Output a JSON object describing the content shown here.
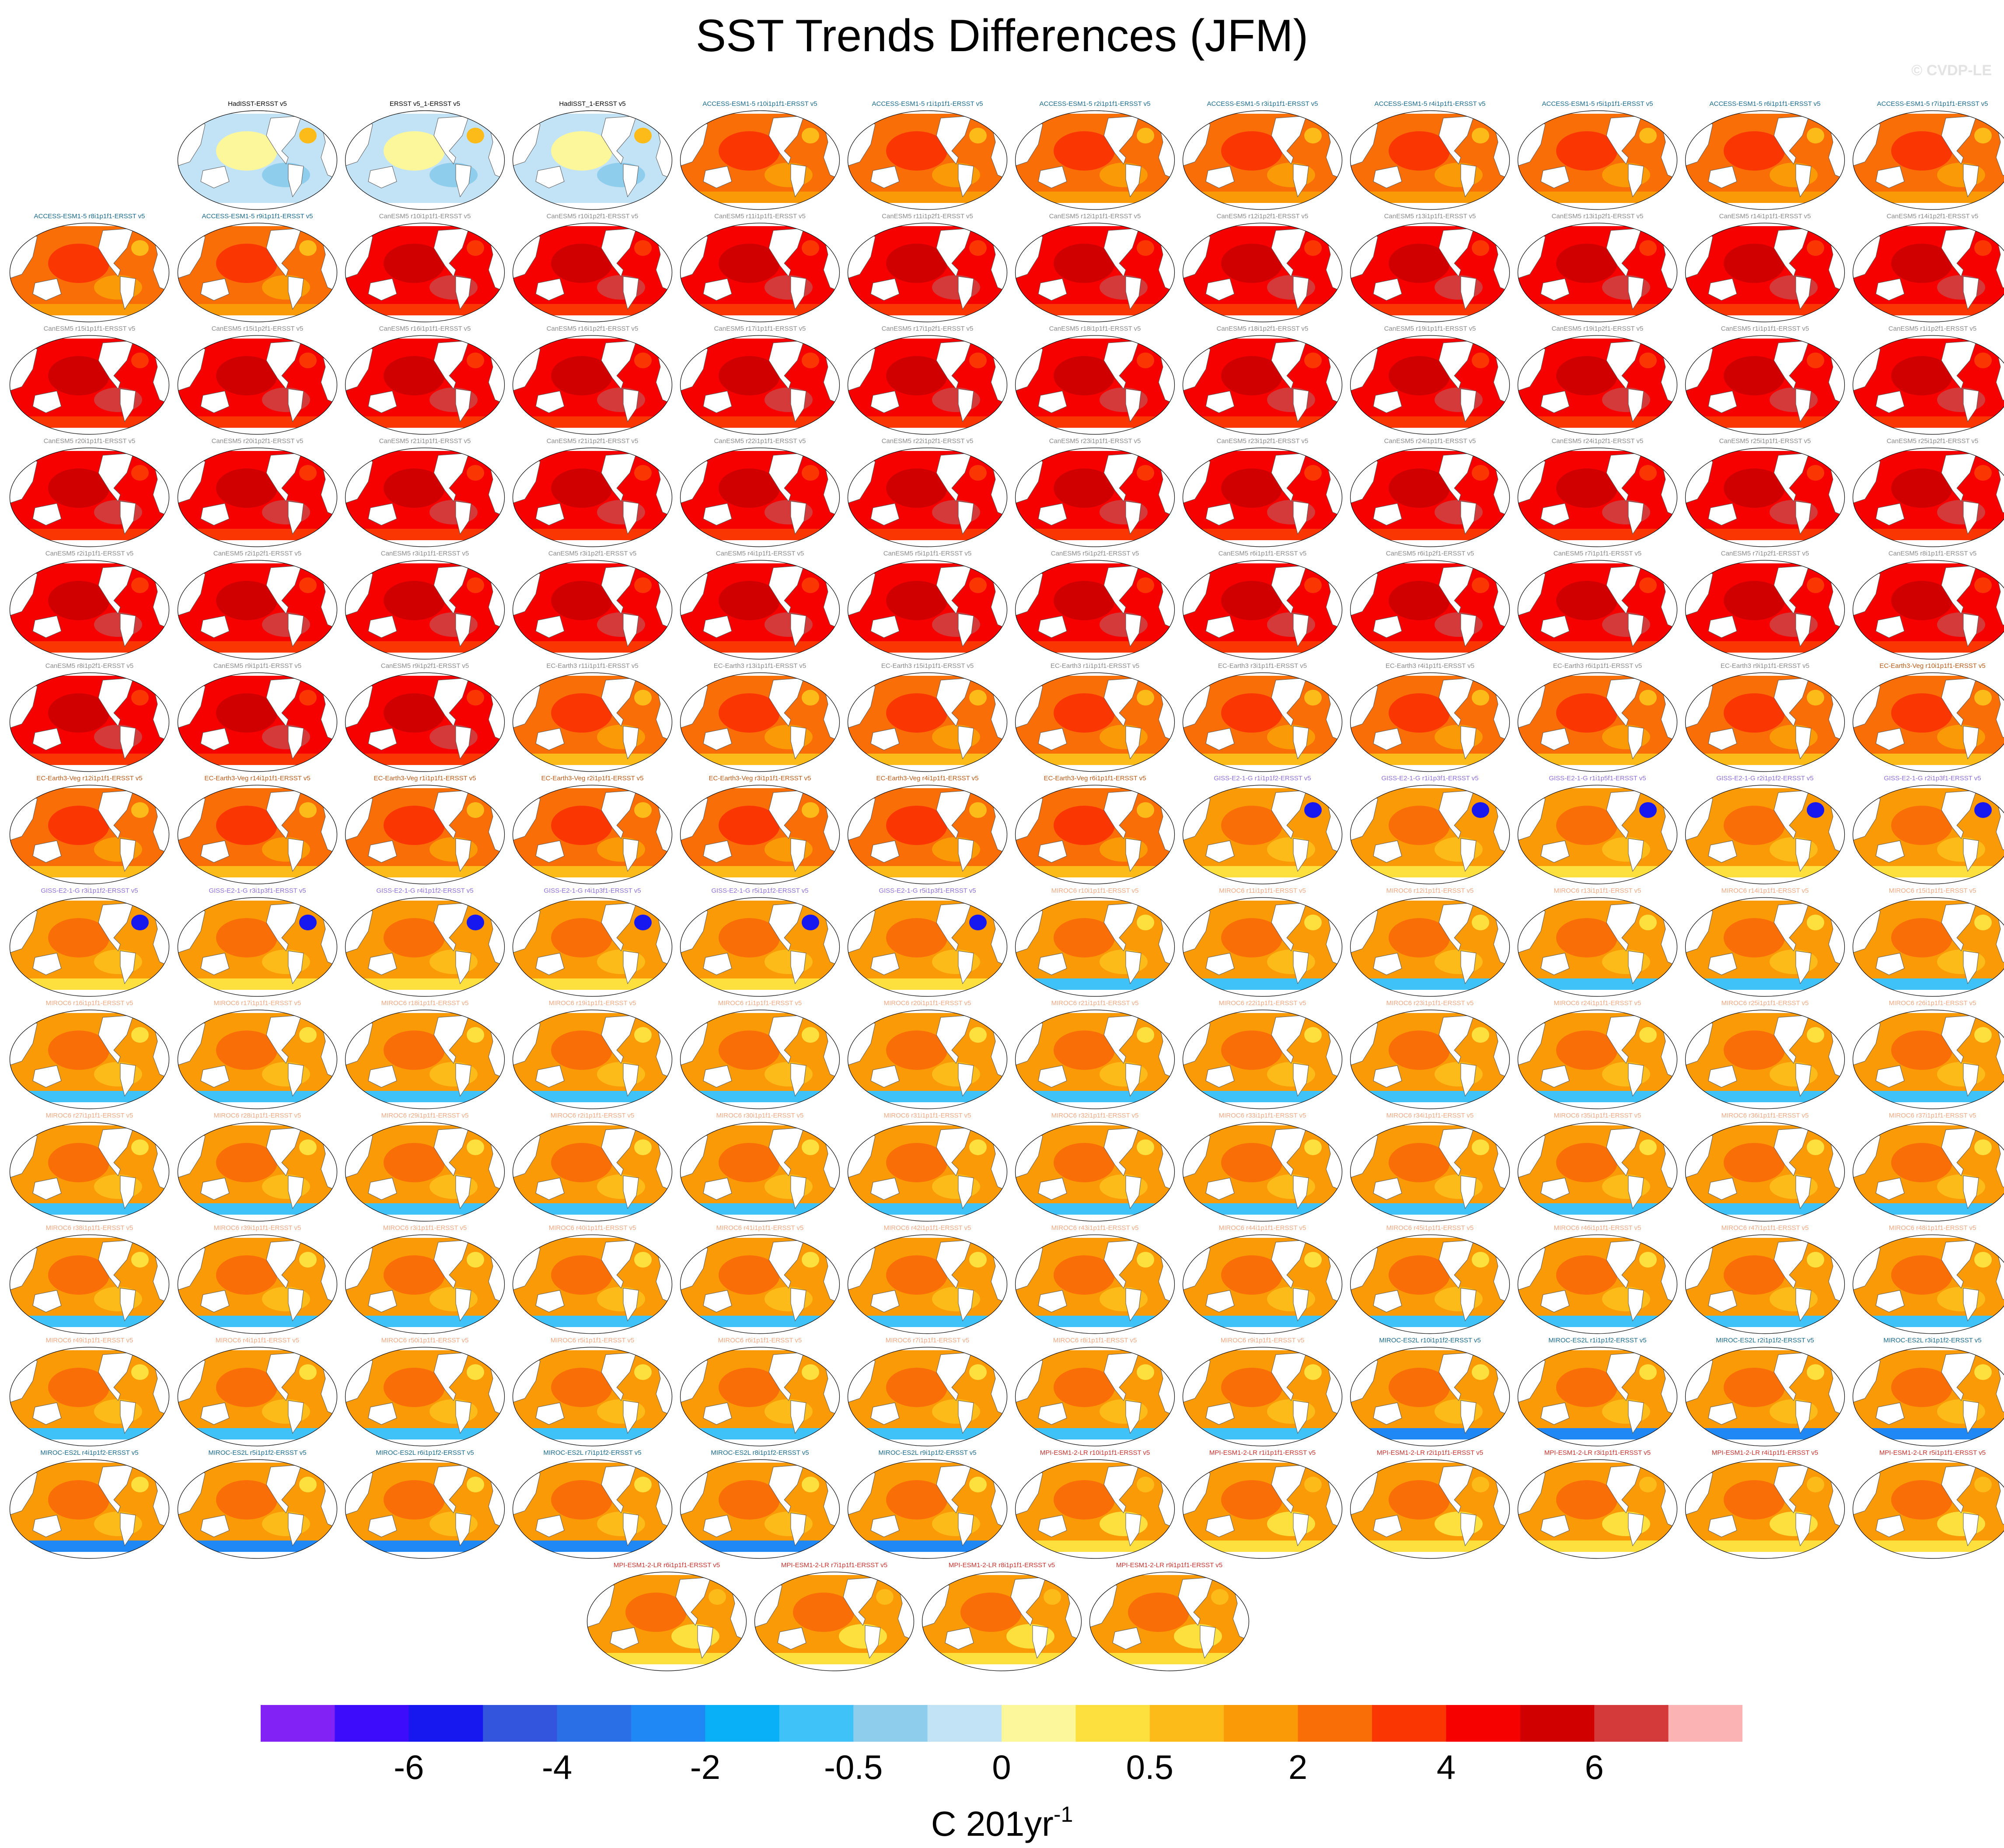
{
  "title": "SST Trends Differences (JFM)",
  "credit": "© CVDP-LE",
  "units": {
    "base": "C 201yr",
    "exponent": "-1"
  },
  "colorbar": {
    "colors": [
      "#8322f5",
      "#3d0cfa",
      "#1717f0",
      "#3355de",
      "#2a6fe6",
      "#1f88f5",
      "#0ab0f7",
      "#3ec2f7",
      "#8ecdec",
      "#c2e3f5",
      "#fdf79b",
      "#fde03d",
      "#fdbb19",
      "#fa9a07",
      "#fa6e07",
      "#fa3703",
      "#f70000",
      "#d10000",
      "#d43a3a",
      "#fcb3b3"
    ],
    "tick_labels": [
      "-6",
      "-4",
      "-2",
      "-0.5",
      "0",
      "0.5",
      "2",
      "4",
      "6"
    ]
  },
  "panels": [
    {
      "label": "HadISST-ERSST v5",
      "color": "#000000",
      "scheme": "obs"
    },
    {
      "label": "ERSST v5_1-ERSST v5",
      "color": "#000000",
      "scheme": "obs"
    },
    {
      "label": "HadISST_1-ERSST v5",
      "color": "#000000",
      "scheme": "obs"
    },
    {
      "label": "ACCESS-ESM1-5 r10i1p1f1-ERSST v5",
      "color": "#1a6a8c",
      "scheme": "access"
    },
    {
      "label": "ACCESS-ESM1-5 r1i1p1f1-ERSST v5",
      "color": "#1a6a8c",
      "scheme": "access"
    },
    {
      "label": "ACCESS-ESM1-5 r2i1p1f1-ERSST v5",
      "color": "#1a6a8c",
      "scheme": "access"
    },
    {
      "label": "ACCESS-ESM1-5 r3i1p1f1-ERSST v5",
      "color": "#1a6a8c",
      "scheme": "access"
    },
    {
      "label": "ACCESS-ESM1-5 r4i1p1f1-ERSST v5",
      "color": "#1a6a8c",
      "scheme": "access"
    },
    {
      "label": "ACCESS-ESM1-5 r5i1p1f1-ERSST v5",
      "color": "#1a6a8c",
      "scheme": "access"
    },
    {
      "label": "ACCESS-ESM1-5 r6i1p1f1-ERSST v5",
      "color": "#1a6a8c",
      "scheme": "access"
    },
    {
      "label": "ACCESS-ESM1-5 r7i1p1f1-ERSST v5",
      "color": "#1a6a8c",
      "scheme": "access"
    },
    {
      "label": "ACCESS-ESM1-5 r8i1p1f1-ERSST v5",
      "color": "#1a6a8c",
      "scheme": "access"
    },
    {
      "label": "ACCESS-ESM1-5 r9i1p1f1-ERSST v5",
      "color": "#1a6a8c",
      "scheme": "access"
    },
    {
      "label": "CanESM5 r10i1p1f1-ERSST v5",
      "color": "#8a8a8a",
      "scheme": "canesm"
    },
    {
      "label": "CanESM5 r10i1p2f1-ERSST v5",
      "color": "#8a8a8a",
      "scheme": "canesm"
    },
    {
      "label": "CanESM5 r11i1p1f1-ERSST v5",
      "color": "#8a8a8a",
      "scheme": "canesm"
    },
    {
      "label": "CanESM5 r11i1p2f1-ERSST v5",
      "color": "#8a8a8a",
      "scheme": "canesm"
    },
    {
      "label": "CanESM5 r12i1p1f1-ERSST v5",
      "color": "#8a8a8a",
      "scheme": "canesm"
    },
    {
      "label": "CanESM5 r12i1p2f1-ERSST v5",
      "color": "#8a8a8a",
      "scheme": "canesm"
    },
    {
      "label": "CanESM5 r13i1p1f1-ERSST v5",
      "color": "#8a8a8a",
      "scheme": "canesm"
    },
    {
      "label": "CanESM5 r13i1p2f1-ERSST v5",
      "color": "#8a8a8a",
      "scheme": "canesm"
    },
    {
      "label": "CanESM5 r14i1p1f1-ERSST v5",
      "color": "#8a8a8a",
      "scheme": "canesm"
    },
    {
      "label": "CanESM5 r14i1p2f1-ERSST v5",
      "color": "#8a8a8a",
      "scheme": "canesm"
    },
    {
      "label": "CanESM5 r15i1p1f1-ERSST v5",
      "color": "#8a8a8a",
      "scheme": "canesm"
    },
    {
      "label": "CanESM5 r15i1p2f1-ERSST v5",
      "color": "#8a8a8a",
      "scheme": "canesm"
    },
    {
      "label": "CanESM5 r16i1p1f1-ERSST v5",
      "color": "#8a8a8a",
      "scheme": "canesm"
    },
    {
      "label": "CanESM5 r16i1p2f1-ERSST v5",
      "color": "#8a8a8a",
      "scheme": "canesm"
    },
    {
      "label": "CanESM5 r17i1p1f1-ERSST v5",
      "color": "#8a8a8a",
      "scheme": "canesm"
    },
    {
      "label": "CanESM5 r17i1p2f1-ERSST v5",
      "color": "#8a8a8a",
      "scheme": "canesm"
    },
    {
      "label": "CanESM5 r18i1p1f1-ERSST v5",
      "color": "#8a8a8a",
      "scheme": "canesm"
    },
    {
      "label": "CanESM5 r18i1p2f1-ERSST v5",
      "color": "#8a8a8a",
      "scheme": "canesm"
    },
    {
      "label": "CanESM5 r19i1p1f1-ERSST v5",
      "color": "#8a8a8a",
      "scheme": "canesm"
    },
    {
      "label": "CanESM5 r19i1p2f1-ERSST v5",
      "color": "#8a8a8a",
      "scheme": "canesm"
    },
    {
      "label": "CanESM5 r1i1p1f1-ERSST v5",
      "color": "#8a8a8a",
      "scheme": "canesm"
    },
    {
      "label": "CanESM5 r1i1p2f1-ERSST v5",
      "color": "#8a8a8a",
      "scheme": "canesm"
    },
    {
      "label": "CanESM5 r20i1p1f1-ERSST v5",
      "color": "#8a8a8a",
      "scheme": "canesm"
    },
    {
      "label": "CanESM5 r20i1p2f1-ERSST v5",
      "color": "#8a8a8a",
      "scheme": "canesm"
    },
    {
      "label": "CanESM5 r21i1p1f1-ERSST v5",
      "color": "#8a8a8a",
      "scheme": "canesm"
    },
    {
      "label": "CanESM5 r21i1p2f1-ERSST v5",
      "color": "#8a8a8a",
      "scheme": "canesm"
    },
    {
      "label": "CanESM5 r22i1p1f1-ERSST v5",
      "color": "#8a8a8a",
      "scheme": "canesm"
    },
    {
      "label": "CanESM5 r22i1p2f1-ERSST v5",
      "color": "#8a8a8a",
      "scheme": "canesm"
    },
    {
      "label": "CanESM5 r23i1p1f1-ERSST v5",
      "color": "#8a8a8a",
      "scheme": "canesm"
    },
    {
      "label": "CanESM5 r23i1p2f1-ERSST v5",
      "color": "#8a8a8a",
      "scheme": "canesm"
    },
    {
      "label": "CanESM5 r24i1p1f1-ERSST v5",
      "color": "#8a8a8a",
      "scheme": "canesm"
    },
    {
      "label": "CanESM5 r24i1p2f1-ERSST v5",
      "color": "#8a8a8a",
      "scheme": "canesm"
    },
    {
      "label": "CanESM5 r25i1p1f1-ERSST v5",
      "color": "#8a8a8a",
      "scheme": "canesm"
    },
    {
      "label": "CanESM5 r25i1p2f1-ERSST v5",
      "color": "#8a8a8a",
      "scheme": "canesm"
    },
    {
      "label": "CanESM5 r2i1p1f1-ERSST v5",
      "color": "#8a8a8a",
      "scheme": "canesm"
    },
    {
      "label": "CanESM5 r2i1p2f1-ERSST v5",
      "color": "#8a8a8a",
      "scheme": "canesm"
    },
    {
      "label": "CanESM5 r3i1p1f1-ERSST v5",
      "color": "#8a8a8a",
      "scheme": "canesm"
    },
    {
      "label": "CanESM5 r3i1p2f1-ERSST v5",
      "color": "#8a8a8a",
      "scheme": "canesm"
    },
    {
      "label": "CanESM5 r4i1p1f1-ERSST v5",
      "color": "#8a8a8a",
      "scheme": "canesm"
    },
    {
      "label": "CanESM5 r5i1p1f1-ERSST v5",
      "color": "#8a8a8a",
      "scheme": "canesm"
    },
    {
      "label": "CanESM5 r5i1p2f1-ERSST v5",
      "color": "#8a8a8a",
      "scheme": "canesm"
    },
    {
      "label": "CanESM5 r6i1p1f1-ERSST v5",
      "color": "#8a8a8a",
      "scheme": "canesm"
    },
    {
      "label": "CanESM5 r6i1p2f1-ERSST v5",
      "color": "#8a8a8a",
      "scheme": "canesm"
    },
    {
      "label": "CanESM5 r7i1p1f1-ERSST v5",
      "color": "#8a8a8a",
      "scheme": "canesm"
    },
    {
      "label": "CanESM5 r7i1p2f1-ERSST v5",
      "color": "#8a8a8a",
      "scheme": "canesm"
    },
    {
      "label": "CanESM5 r8i1p1f1-ERSST v5",
      "color": "#8a8a8a",
      "scheme": "canesm"
    },
    {
      "label": "CanESM5 r8i1p2f1-ERSST v5",
      "color": "#8a8a8a",
      "scheme": "canesm"
    },
    {
      "label": "CanESM5 r9i1p1f1-ERSST v5",
      "color": "#8a8a8a",
      "scheme": "canesm"
    },
    {
      "label": "CanESM5 r9i1p2f1-ERSST v5",
      "color": "#8a8a8a",
      "scheme": "canesm"
    },
    {
      "label": "EC-Earth3 r11i1p1f1-ERSST v5",
      "color": "#8a8a8a",
      "scheme": "ecearth"
    },
    {
      "label": "EC-Earth3 r13i1p1f1-ERSST v5",
      "color": "#8a8a8a",
      "scheme": "ecearth"
    },
    {
      "label": "EC-Earth3 r15i1p1f1-ERSST v5",
      "color": "#8a8a8a",
      "scheme": "ecearth"
    },
    {
      "label": "EC-Earth3 r1i1p1f1-ERSST v5",
      "color": "#8a8a8a",
      "scheme": "ecearth"
    },
    {
      "label": "EC-Earth3 r3i1p1f1-ERSST v5",
      "color": "#8a8a8a",
      "scheme": "ecearth"
    },
    {
      "label": "EC-Earth3 r4i1p1f1-ERSST v5",
      "color": "#8a8a8a",
      "scheme": "ecearth"
    },
    {
      "label": "EC-Earth3 r6i1p1f1-ERSST v5",
      "color": "#8a8a8a",
      "scheme": "ecearth"
    },
    {
      "label": "EC-Earth3 r9i1p1f1-ERSST v5",
      "color": "#8a8a8a",
      "scheme": "ecearth"
    },
    {
      "label": "EC-Earth3-Veg r10i1p1f1-ERSST v5",
      "color": "#b85a18",
      "scheme": "ecveg"
    },
    {
      "label": "EC-Earth3-Veg r12i1p1f1-ERSST v5",
      "color": "#b85a18",
      "scheme": "ecveg"
    },
    {
      "label": "EC-Earth3-Veg r14i1p1f1-ERSST v5",
      "color": "#b85a18",
      "scheme": "ecveg"
    },
    {
      "label": "EC-Earth3-Veg r1i1p1f1-ERSST v5",
      "color": "#b85a18",
      "scheme": "ecveg"
    },
    {
      "label": "EC-Earth3-Veg r2i1p1f1-ERSST v5",
      "color": "#b85a18",
      "scheme": "ecveg"
    },
    {
      "label": "EC-Earth3-Veg r3i1p1f1-ERSST v5",
      "color": "#b85a18",
      "scheme": "ecveg"
    },
    {
      "label": "EC-Earth3-Veg r4i1p1f1-ERSST v5",
      "color": "#b85a18",
      "scheme": "ecveg"
    },
    {
      "label": "EC-Earth3-Veg r6i1p1f1-ERSST v5",
      "color": "#b85a18",
      "scheme": "ecveg"
    },
    {
      "label": "GISS-E2-1-G r1i1p1f2-ERSST v5",
      "color": "#8e6fd8",
      "scheme": "giss"
    },
    {
      "label": "GISS-E2-1-G r1i1p3f1-ERSST v5",
      "color": "#8e6fd8",
      "scheme": "giss"
    },
    {
      "label": "GISS-E2-1-G r1i1p5f1-ERSST v5",
      "color": "#8e6fd8",
      "scheme": "giss"
    },
    {
      "label": "GISS-E2-1-G r2i1p1f2-ERSST v5",
      "color": "#8e6fd8",
      "scheme": "giss"
    },
    {
      "label": "GISS-E2-1-G r2i1p3f1-ERSST v5",
      "color": "#8e6fd8",
      "scheme": "giss"
    },
    {
      "label": "GISS-E2-1-G r3i1p1f2-ERSST v5",
      "color": "#8e6fd8",
      "scheme": "giss"
    },
    {
      "label": "GISS-E2-1-G r3i1p3f1-ERSST v5",
      "color": "#8e6fd8",
      "scheme": "giss"
    },
    {
      "label": "GISS-E2-1-G r4i1p1f2-ERSST v5",
      "color": "#8e6fd8",
      "scheme": "giss"
    },
    {
      "label": "GISS-E2-1-G r4i1p3f1-ERSST v5",
      "color": "#8e6fd8",
      "scheme": "giss"
    },
    {
      "label": "GISS-E2-1-G r5i1p1f2-ERSST v5",
      "color": "#8e6fd8",
      "scheme": "giss"
    },
    {
      "label": "GISS-E2-1-G r5i1p3f1-ERSST v5",
      "color": "#8e6fd8",
      "scheme": "giss"
    },
    {
      "label": "MIROC6 r10i1p1f1-ERSST v5",
      "color": "#f0a882",
      "scheme": "miroc6"
    },
    {
      "label": "MIROC6 r11i1p1f1-ERSST v5",
      "color": "#f0a882",
      "scheme": "miroc6"
    },
    {
      "label": "MIROC6 r12i1p1f1-ERSST v5",
      "color": "#f0a882",
      "scheme": "miroc6"
    },
    {
      "label": "MIROC6 r13i1p1f1-ERSST v5",
      "color": "#f0a882",
      "scheme": "miroc6"
    },
    {
      "label": "MIROC6 r14i1p1f1-ERSST v5",
      "color": "#f0a882",
      "scheme": "miroc6"
    },
    {
      "label": "MIROC6 r15i1p1f1-ERSST v5",
      "color": "#f0a882",
      "scheme": "miroc6"
    },
    {
      "label": "MIROC6 r16i1p1f1-ERSST v5",
      "color": "#f0a882",
      "scheme": "miroc6"
    },
    {
      "label": "MIROC6 r17i1p1f1-ERSST v5",
      "color": "#f0a882",
      "scheme": "miroc6"
    },
    {
      "label": "MIROC6 r18i1p1f1-ERSST v5",
      "color": "#f0a882",
      "scheme": "miroc6"
    },
    {
      "label": "MIROC6 r19i1p1f1-ERSST v5",
      "color": "#f0a882",
      "scheme": "miroc6"
    },
    {
      "label": "MIROC6 r1i1p1f1-ERSST v5",
      "color": "#f0a882",
      "scheme": "miroc6"
    },
    {
      "label": "MIROC6 r20i1p1f1-ERSST v5",
      "color": "#f0a882",
      "scheme": "miroc6"
    },
    {
      "label": "MIROC6 r21i1p1f1-ERSST v5",
      "color": "#f0a882",
      "scheme": "miroc6"
    },
    {
      "label": "MIROC6 r22i1p1f1-ERSST v5",
      "color": "#f0a882",
      "scheme": "miroc6"
    },
    {
      "label": "MIROC6 r23i1p1f1-ERSST v5",
      "color": "#f0a882",
      "scheme": "miroc6"
    },
    {
      "label": "MIROC6 r24i1p1f1-ERSST v5",
      "color": "#f0a882",
      "scheme": "miroc6"
    },
    {
      "label": "MIROC6 r25i1p1f1-ERSST v5",
      "color": "#f0a882",
      "scheme": "miroc6"
    },
    {
      "label": "MIROC6 r26i1p1f1-ERSST v5",
      "color": "#f0a882",
      "scheme": "miroc6"
    },
    {
      "label": "MIROC6 r27i1p1f1-ERSST v5",
      "color": "#f0a882",
      "scheme": "miroc6"
    },
    {
      "label": "MIROC6 r28i1p1f1-ERSST v5",
      "color": "#f0a882",
      "scheme": "miroc6"
    },
    {
      "label": "MIROC6 r29i1p1f1-ERSST v5",
      "color": "#f0a882",
      "scheme": "miroc6"
    },
    {
      "label": "MIROC6 r2i1p1f1-ERSST v5",
      "color": "#f0a882",
      "scheme": "miroc6"
    },
    {
      "label": "MIROC6 r30i1p1f1-ERSST v5",
      "color": "#f0a882",
      "scheme": "miroc6"
    },
    {
      "label": "MIROC6 r31i1p1f1-ERSST v5",
      "color": "#f0a882",
      "scheme": "miroc6"
    },
    {
      "label": "MIROC6 r32i1p1f1-ERSST v5",
      "color": "#f0a882",
      "scheme": "miroc6"
    },
    {
      "label": "MIROC6 r33i1p1f1-ERSST v5",
      "color": "#f0a882",
      "scheme": "miroc6"
    },
    {
      "label": "MIROC6 r34i1p1f1-ERSST v5",
      "color": "#f0a882",
      "scheme": "miroc6"
    },
    {
      "label": "MIROC6 r35i1p1f1-ERSST v5",
      "color": "#f0a882",
      "scheme": "miroc6"
    },
    {
      "label": "MIROC6 r36i1p1f1-ERSST v5",
      "color": "#f0a882",
      "scheme": "miroc6"
    },
    {
      "label": "MIROC6 r37i1p1f1-ERSST v5",
      "color": "#f0a882",
      "scheme": "miroc6"
    },
    {
      "label": "MIROC6 r38i1p1f1-ERSST v5",
      "color": "#f0a882",
      "scheme": "miroc6"
    },
    {
      "label": "MIROC6 r39i1p1f1-ERSST v5",
      "color": "#f0a882",
      "scheme": "miroc6"
    },
    {
      "label": "MIROC6 r3i1p1f1-ERSST v5",
      "color": "#f0a882",
      "scheme": "miroc6"
    },
    {
      "label": "MIROC6 r40i1p1f1-ERSST v5",
      "color": "#f0a882",
      "scheme": "miroc6"
    },
    {
      "label": "MIROC6 r41i1p1f1-ERSST v5",
      "color": "#f0a882",
      "scheme": "miroc6"
    },
    {
      "label": "MIROC6 r42i1p1f1-ERSST v5",
      "color": "#f0a882",
      "scheme": "miroc6"
    },
    {
      "label": "MIROC6 r43i1p1f1-ERSST v5",
      "color": "#f0a882",
      "scheme": "miroc6"
    },
    {
      "label": "MIROC6 r44i1p1f1-ERSST v5",
      "color": "#f0a882",
      "scheme": "miroc6"
    },
    {
      "label": "MIROC6 r45i1p1f1-ERSST v5",
      "color": "#f0a882",
      "scheme": "miroc6"
    },
    {
      "label": "MIROC6 r46i1p1f1-ERSST v5",
      "color": "#f0a882",
      "scheme": "miroc6"
    },
    {
      "label": "MIROC6 r47i1p1f1-ERSST v5",
      "color": "#f0a882",
      "scheme": "miroc6"
    },
    {
      "label": "MIROC6 r48i1p1f1-ERSST v5",
      "color": "#f0a882",
      "scheme": "miroc6"
    },
    {
      "label": "MIROC6 r49i1p1f1-ERSST v5",
      "color": "#f0a882",
      "scheme": "miroc6"
    },
    {
      "label": "MIROC6 r4i1p1f1-ERSST v5",
      "color": "#f0a882",
      "scheme": "miroc6"
    },
    {
      "label": "MIROC6 r50i1p1f1-ERSST v5",
      "color": "#f0a882",
      "scheme": "miroc6"
    },
    {
      "label": "MIROC6 r5i1p1f1-ERSST v5",
      "color": "#f0a882",
      "scheme": "miroc6"
    },
    {
      "label": "MIROC6 r6i1p1f1-ERSST v5",
      "color": "#f0a882",
      "scheme": "miroc6"
    },
    {
      "label": "MIROC6 r7i1p1f1-ERSST v5",
      "color": "#f0a882",
      "scheme": "miroc6"
    },
    {
      "label": "MIROC6 r8i1p1f1-ERSST v5",
      "color": "#f0a882",
      "scheme": "miroc6"
    },
    {
      "label": "MIROC6 r9i1p1f1-ERSST v5",
      "color": "#f0a882",
      "scheme": "miroc6"
    },
    {
      "label": "MIROC-ES2L r10i1p1f2-ERSST v5",
      "color": "#1a6a8c",
      "scheme": "mirocesl"
    },
    {
      "label": "MIROC-ES2L r1i1p1f2-ERSST v5",
      "color": "#1a6a8c",
      "scheme": "mirocesl"
    },
    {
      "label": "MIROC-ES2L r2i1p1f2-ERSST v5",
      "color": "#1a6a8c",
      "scheme": "mirocesl"
    },
    {
      "label": "MIROC-ES2L r3i1p1f2-ERSST v5",
      "color": "#1a6a8c",
      "scheme": "mirocesl"
    },
    {
      "label": "MIROC-ES2L r4i1p1f2-ERSST v5",
      "color": "#1a6a8c",
      "scheme": "mirocesl"
    },
    {
      "label": "MIROC-ES2L r5i1p1f2-ERSST v5",
      "color": "#1a6a8c",
      "scheme": "mirocesl"
    },
    {
      "label": "MIROC-ES2L r6i1p1f2-ERSST v5",
      "color": "#1a6a8c",
      "scheme": "mirocesl"
    },
    {
      "label": "MIROC-ES2L r7i1p1f2-ERSST v5",
      "color": "#1a6a8c",
      "scheme": "mirocesl"
    },
    {
      "label": "MIROC-ES2L r8i1p1f2-ERSST v5",
      "color": "#1a6a8c",
      "scheme": "mirocesl"
    },
    {
      "label": "MIROC-ES2L r9i1p1f2-ERSST v5",
      "color": "#1a6a8c",
      "scheme": "mirocesl"
    },
    {
      "label": "MPI-ESM1-2-LR r10i1p1f1-ERSST v5",
      "color": "#c8322e",
      "scheme": "mpi"
    },
    {
      "label": "MPI-ESM1-2-LR r1i1p1f1-ERSST v5",
      "color": "#c8322e",
      "scheme": "mpi"
    },
    {
      "label": "MPI-ESM1-2-LR r2i1p1f1-ERSST v5",
      "color": "#c8322e",
      "scheme": "mpi"
    },
    {
      "label": "MPI-ESM1-2-LR r3i1p1f1-ERSST v5",
      "color": "#c8322e",
      "scheme": "mpi"
    },
    {
      "label": "MPI-ESM1-2-LR r4i1p1f1-ERSST v5",
      "color": "#c8322e",
      "scheme": "mpi"
    },
    {
      "label": "MPI-ESM1-2-LR r5i1p1f1-ERSST v5",
      "color": "#c8322e",
      "scheme": "mpi"
    },
    {
      "label": "MPI-ESM1-2-LR r6i1p1f1-ERSST v5",
      "color": "#c8322e",
      "scheme": "mpi"
    },
    {
      "label": "MPI-ESM1-2-LR r7i1p1f1-ERSST v5",
      "color": "#c8322e",
      "scheme": "mpi"
    },
    {
      "label": "MPI-ESM1-2-LR r8i1p1f1-ERSST v5",
      "color": "#c8322e",
      "scheme": "mpi"
    },
    {
      "label": "MPI-ESM1-2-LR r9i1p1f1-ERSST v5",
      "color": "#c8322e",
      "scheme": "mpi"
    }
  ]
}
